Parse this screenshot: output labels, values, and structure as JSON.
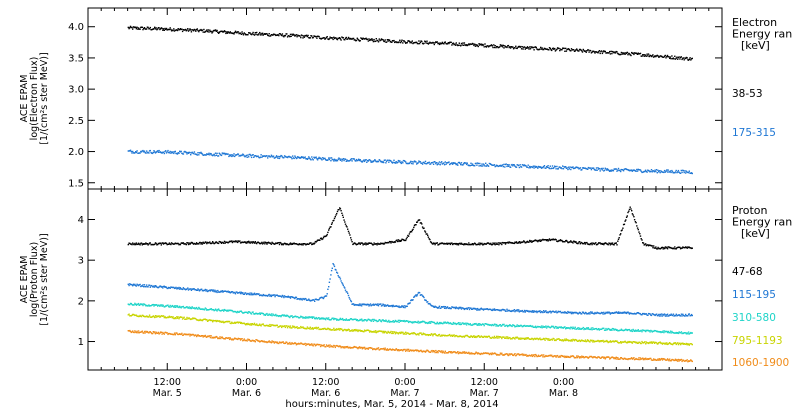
{
  "chart_data": [
    {
      "type": "scatter",
      "ylabel": [
        "ACE EPAM",
        "log(Electron Flux)",
        "[1/(cm²s ster MeV)]"
      ],
      "ylim": [
        1.4,
        4.3
      ],
      "yticks": [
        1.5,
        2.0,
        2.5,
        3.0,
        3.5,
        4.0
      ],
      "ytick_labels": [
        "1.5",
        "2.0",
        "2.5",
        "3.0",
        "3.5",
        "4.0"
      ],
      "legend_title": [
        "Electron",
        "Energy ran",
        "[keV]"
      ],
      "series": [
        {
          "name": "38-53",
          "color": "#000000",
          "x": [
            0,
            6,
            12,
            18,
            24,
            30,
            36,
            42,
            48,
            54,
            60,
            66,
            72,
            78,
            85.5
          ],
          "y": [
            3.98,
            3.96,
            3.93,
            3.89,
            3.86,
            3.82,
            3.79,
            3.76,
            3.73,
            3.7,
            3.66,
            3.63,
            3.59,
            3.55,
            3.48
          ]
        },
        {
          "name": "175-315",
          "color": "#1f77d4",
          "x": [
            0,
            6,
            12,
            18,
            24,
            30,
            36,
            42,
            48,
            54,
            60,
            66,
            72,
            78,
            85.5
          ],
          "y": [
            2.0,
            1.99,
            1.96,
            1.93,
            1.91,
            1.88,
            1.85,
            1.83,
            1.81,
            1.79,
            1.76,
            1.74,
            1.71,
            1.69,
            1.67
          ]
        }
      ]
    },
    {
      "type": "scatter",
      "ylabel": [
        "ACE EPAM",
        "log(Proton Flux)",
        "[1/(cm²s ster MeV)]"
      ],
      "ylim": [
        0.3,
        4.75
      ],
      "yticks": [
        1,
        2,
        3,
        4
      ],
      "ytick_labels": [
        "1",
        "2",
        "3",
        "4"
      ],
      "legend_title": [
        "Proton",
        "Energy ran",
        "[keV]"
      ],
      "series": [
        {
          "name": "47-68",
          "color": "#000000",
          "x": [
            0,
            8,
            16,
            24,
            28,
            30,
            32,
            34,
            38,
            42,
            44,
            46,
            50,
            56,
            64,
            70,
            74,
            76,
            78,
            80,
            85.5
          ],
          "y": [
            3.4,
            3.4,
            3.45,
            3.4,
            3.4,
            3.6,
            4.3,
            3.4,
            3.4,
            3.5,
            4.0,
            3.4,
            3.4,
            3.4,
            3.5,
            3.4,
            3.4,
            4.3,
            3.4,
            3.3,
            3.3
          ]
        },
        {
          "name": "115-195",
          "color": "#1f77d4",
          "x": [
            0,
            8,
            16,
            24,
            28,
            30,
            31,
            34,
            38,
            42,
            44,
            46,
            52,
            60,
            68,
            76,
            80,
            85.5
          ],
          "y": [
            2.4,
            2.3,
            2.2,
            2.1,
            2.0,
            2.1,
            2.9,
            1.9,
            1.9,
            1.85,
            2.2,
            1.85,
            1.8,
            1.75,
            1.7,
            1.7,
            1.65,
            1.65
          ]
        },
        {
          "name": "310-580",
          "color": "#1fd4c8",
          "x": [
            0,
            8,
            16,
            24,
            31,
            40,
            48,
            56,
            64,
            72,
            80,
            85.5
          ],
          "y": [
            1.92,
            1.85,
            1.74,
            1.62,
            1.55,
            1.5,
            1.45,
            1.4,
            1.35,
            1.3,
            1.25,
            1.2
          ]
        },
        {
          "name": "795-1193",
          "color": "#c8d400",
          "x": [
            0,
            8,
            16,
            24,
            31,
            40,
            48,
            56,
            64,
            72,
            80,
            85.5
          ],
          "y": [
            1.65,
            1.58,
            1.46,
            1.36,
            1.3,
            1.22,
            1.15,
            1.1,
            1.05,
            1.0,
            0.96,
            0.93
          ]
        },
        {
          "name": "1060-1900",
          "color": "#f08c1a",
          "x": [
            0,
            8,
            16,
            24,
            31,
            40,
            48,
            56,
            64,
            72,
            80,
            85.5
          ],
          "y": [
            1.25,
            1.18,
            1.06,
            0.96,
            0.88,
            0.8,
            0.74,
            0.69,
            0.64,
            0.6,
            0.56,
            0.52
          ]
        }
      ]
    }
  ],
  "x_axis": {
    "xlim": [
      -6,
      90
    ],
    "ticks": [
      {
        "x": 6,
        "time": "12:00",
        "date": "Mar. 5"
      },
      {
        "x": 18,
        "time": "0:00",
        "date": "Mar. 6"
      },
      {
        "x": 30,
        "time": "12:00",
        "date": "Mar. 6"
      },
      {
        "x": 42,
        "time": "0:00",
        "date": "Mar. 7"
      },
      {
        "x": 54,
        "time": "12:00",
        "date": "Mar. 7"
      },
      {
        "x": 66,
        "time": "0:00",
        "date": "Mar. 8"
      }
    ],
    "label": "hours:minutes, Mar.  5, 2014 - Mar.  8, 2014"
  }
}
